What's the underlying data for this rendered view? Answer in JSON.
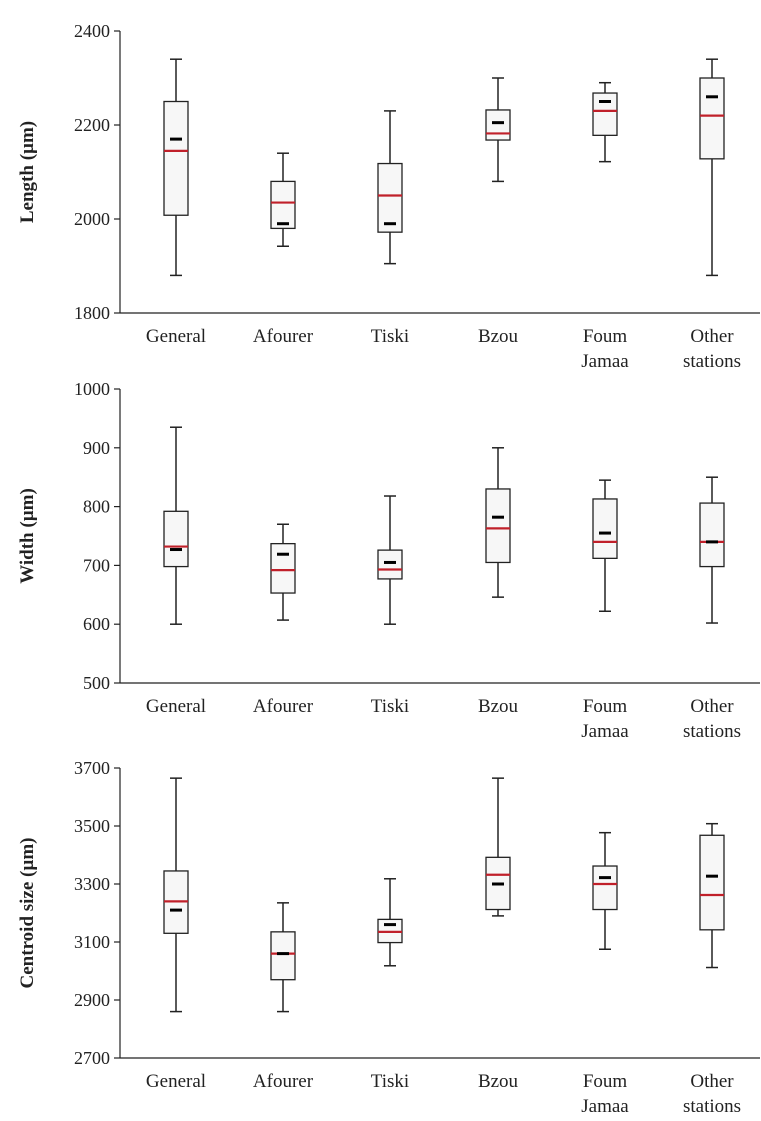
{
  "colors": {
    "median": "#c0202a",
    "mean": "#000000",
    "box_fill": "#f7f7f7",
    "stroke": "#222222"
  },
  "chart_data": [
    {
      "type": "boxplot",
      "ylabel": "Length (µm)",
      "ylim": [
        1800,
        2400
      ],
      "yticks": [
        "1800",
        "2000",
        "2200",
        "2400"
      ],
      "categories": [
        "General",
        "Afourer",
        "Tiski",
        "Bzou",
        "Foum Jamaa",
        "Other stations"
      ],
      "boxes": [
        {
          "min": 1880,
          "q1": 2008,
          "median": 2145,
          "q3": 2250,
          "max": 2340,
          "mean": 2170
        },
        {
          "min": 1942,
          "q1": 1980,
          "median": 2035,
          "q3": 2080,
          "max": 2140,
          "mean": 1990
        },
        {
          "min": 1905,
          "q1": 1972,
          "median": 2050,
          "q3": 2118,
          "max": 2230,
          "mean": 1990
        },
        {
          "min": 2080,
          "q1": 2168,
          "median": 2182,
          "q3": 2232,
          "max": 2300,
          "mean": 2205
        },
        {
          "min": 2122,
          "q1": 2178,
          "median": 2230,
          "q3": 2268,
          "max": 2290,
          "mean": 2250
        },
        {
          "min": 1880,
          "q1": 2128,
          "median": 2220,
          "q3": 2300,
          "max": 2340,
          "mean": 2260
        }
      ]
    },
    {
      "type": "boxplot",
      "ylabel": "Width (µm)",
      "ylim": [
        500,
        1000
      ],
      "yticks": [
        "500",
        "600",
        "700",
        "800",
        "900",
        "1000"
      ],
      "categories": [
        "General",
        "Afourer",
        "Tiski",
        "Bzou",
        "Foum Jamaa",
        "Other stations"
      ],
      "boxes": [
        {
          "min": 600,
          "q1": 698,
          "median": 732,
          "q3": 792,
          "max": 935,
          "mean": 727
        },
        {
          "min": 607,
          "q1": 653,
          "median": 692,
          "q3": 737,
          "max": 770,
          "mean": 719
        },
        {
          "min": 600,
          "q1": 677,
          "median": 693,
          "q3": 726,
          "max": 818,
          "mean": 705
        },
        {
          "min": 646,
          "q1": 705,
          "median": 763,
          "q3": 830,
          "max": 900,
          "mean": 782
        },
        {
          "min": 622,
          "q1": 712,
          "median": 740,
          "q3": 813,
          "max": 845,
          "mean": 755
        },
        {
          "min": 602,
          "q1": 698,
          "median": 740,
          "q3": 806,
          "max": 850,
          "mean": 740
        }
      ]
    },
    {
      "type": "boxplot",
      "ylabel": "Centroid size (µm)",
      "ylim": [
        2700,
        3700
      ],
      "yticks": [
        "2700",
        "2900",
        "3100",
        "3300",
        "3500",
        "3700"
      ],
      "categories": [
        "General",
        "Afourer",
        "Tiski",
        "Bzou",
        "Foum Jamaa",
        "Other stations"
      ],
      "boxes": [
        {
          "min": 2860,
          "q1": 3130,
          "median": 3240,
          "q3": 3345,
          "max": 3665,
          "mean": 3210
        },
        {
          "min": 2860,
          "q1": 2970,
          "median": 3060,
          "q3": 3135,
          "max": 3235,
          "mean": 3060
        },
        {
          "min": 3018,
          "q1": 3098,
          "median": 3135,
          "q3": 3178,
          "max": 3318,
          "mean": 3160
        },
        {
          "min": 3190,
          "q1": 3212,
          "median": 3332,
          "q3": 3392,
          "max": 3665,
          "mean": 3300
        },
        {
          "min": 3075,
          "q1": 3212,
          "median": 3300,
          "q3": 3362,
          "max": 3477,
          "mean": 3322
        },
        {
          "min": 3012,
          "q1": 3142,
          "median": 3262,
          "q3": 3468,
          "max": 3508,
          "mean": 3327
        }
      ]
    }
  ]
}
